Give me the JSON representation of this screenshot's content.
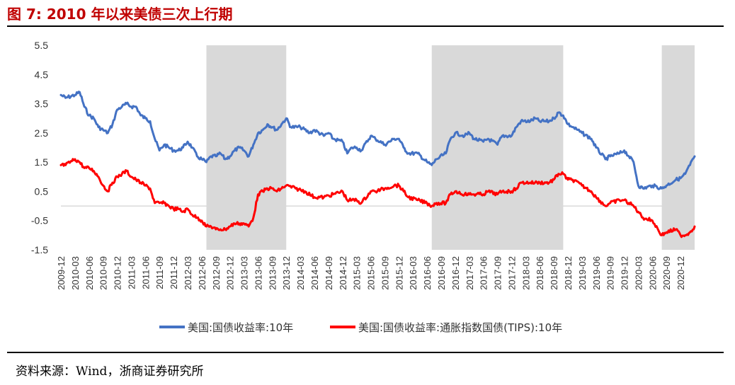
{
  "figure": {
    "title": "图 7: 2010 年以来美债三次上行期",
    "source": "资料来源：Wind，浙商证券研究所"
  },
  "chart_data": {
    "type": "line",
    "title": "图 7: 2010 年以来美债三次上行期",
    "xlabel": "",
    "ylabel": "",
    "ylim": [
      -1.5,
      5.5
    ],
    "yticks": [
      "5.5",
      "4.5",
      "3.5",
      "2.5",
      "1.5",
      "0.5",
      "-0.5",
      "-1.5"
    ],
    "x_range": [
      "2009-12",
      "2021-03"
    ],
    "x_tick_labels": [
      "2009-12",
      "2010-03",
      "2010-06",
      "2010-09",
      "2010-12",
      "2011-03",
      "2011-06",
      "2011-09",
      "2011-12",
      "2012-03",
      "2012-06",
      "2012-09",
      "2012-12",
      "2013-03",
      "2013-06",
      "2013-09",
      "2013-12",
      "2014-03",
      "2014-06",
      "2014-09",
      "2014-12",
      "2015-03",
      "2015-06",
      "2015-09",
      "2015-12",
      "2016-03",
      "2016-06",
      "2016-09",
      "2016-12",
      "2017-03",
      "2017-06",
      "2017-09",
      "2017-12",
      "2018-03",
      "2018-06",
      "2018-09",
      "2018-12",
      "2019-03",
      "2019-06",
      "2019-09",
      "2019-12",
      "2020-03",
      "2020-06",
      "2020-09",
      "2020-12"
    ],
    "grid": false,
    "legend_position": "bottom",
    "shaded_periods": [
      {
        "start": "2012-07",
        "end": "2013-12"
      },
      {
        "start": "2016-07",
        "end": "2018-11"
      },
      {
        "start": "2020-08",
        "end": "2021-03"
      }
    ],
    "series": [
      {
        "name": "美国:国债收益率:10年",
        "color": "#4472c4",
        "points": [
          [
            "2009-12",
            3.8
          ],
          [
            "2010-01",
            3.7
          ],
          [
            "2010-03",
            3.8
          ],
          [
            "2010-04",
            3.9
          ],
          [
            "2010-05",
            3.4
          ],
          [
            "2010-06",
            3.1
          ],
          [
            "2010-07",
            3.0
          ],
          [
            "2010-08",
            2.7
          ],
          [
            "2010-09",
            2.6
          ],
          [
            "2010-10",
            2.5
          ],
          [
            "2010-11",
            2.8
          ],
          [
            "2010-12",
            3.3
          ],
          [
            "2011-01",
            3.4
          ],
          [
            "2011-02",
            3.5
          ],
          [
            "2011-03",
            3.4
          ],
          [
            "2011-04",
            3.4
          ],
          [
            "2011-05",
            3.1
          ],
          [
            "2011-06",
            3.0
          ],
          [
            "2011-07",
            2.9
          ],
          [
            "2011-08",
            2.3
          ],
          [
            "2011-09",
            1.9
          ],
          [
            "2011-10",
            2.1
          ],
          [
            "2011-11",
            2.0
          ],
          [
            "2011-12",
            1.9
          ],
          [
            "2012-01",
            1.9
          ],
          [
            "2012-02",
            2.0
          ],
          [
            "2012-03",
            2.2
          ],
          [
            "2012-04",
            2.0
          ],
          [
            "2012-05",
            1.7
          ],
          [
            "2012-06",
            1.6
          ],
          [
            "2012-07",
            1.5
          ],
          [
            "2012-08",
            1.7
          ],
          [
            "2012-09",
            1.7
          ],
          [
            "2012-10",
            1.8
          ],
          [
            "2012-11",
            1.6
          ],
          [
            "2012-12",
            1.7
          ],
          [
            "2013-01",
            1.9
          ],
          [
            "2013-02",
            2.0
          ],
          [
            "2013-03",
            1.9
          ],
          [
            "2013-04",
            1.7
          ],
          [
            "2013-05",
            2.1
          ],
          [
            "2013-06",
            2.5
          ],
          [
            "2013-07",
            2.6
          ],
          [
            "2013-08",
            2.8
          ],
          [
            "2013-09",
            2.7
          ],
          [
            "2013-10",
            2.6
          ],
          [
            "2013-11",
            2.8
          ],
          [
            "2013-12",
            3.0
          ],
          [
            "2014-01",
            2.7
          ],
          [
            "2014-03",
            2.7
          ],
          [
            "2014-05",
            2.5
          ],
          [
            "2014-06",
            2.6
          ],
          [
            "2014-08",
            2.4
          ],
          [
            "2014-09",
            2.5
          ],
          [
            "2014-10",
            2.3
          ],
          [
            "2014-12",
            2.2
          ],
          [
            "2015-01",
            1.8
          ],
          [
            "2015-02",
            2.0
          ],
          [
            "2015-03",
            2.0
          ],
          [
            "2015-04",
            1.9
          ],
          [
            "2015-06",
            2.4
          ],
          [
            "2015-07",
            2.3
          ],
          [
            "2015-09",
            2.1
          ],
          [
            "2015-11",
            2.3
          ],
          [
            "2015-12",
            2.3
          ],
          [
            "2016-01",
            2.0
          ],
          [
            "2016-02",
            1.8
          ],
          [
            "2016-04",
            1.8
          ],
          [
            "2016-06",
            1.5
          ],
          [
            "2016-07",
            1.4
          ],
          [
            "2016-08",
            1.6
          ],
          [
            "2016-10",
            1.8
          ],
          [
            "2016-11",
            2.3
          ],
          [
            "2016-12",
            2.5
          ],
          [
            "2017-02",
            2.4
          ],
          [
            "2017-03",
            2.5
          ],
          [
            "2017-04",
            2.3
          ],
          [
            "2017-06",
            2.2
          ],
          [
            "2017-07",
            2.3
          ],
          [
            "2017-09",
            2.1
          ],
          [
            "2017-10",
            2.4
          ],
          [
            "2017-12",
            2.4
          ],
          [
            "2018-01",
            2.7
          ],
          [
            "2018-02",
            2.9
          ],
          [
            "2018-04",
            2.9
          ],
          [
            "2018-05",
            3.0
          ],
          [
            "2018-06",
            2.9
          ],
          [
            "2018-08",
            2.9
          ],
          [
            "2018-09",
            3.0
          ],
          [
            "2018-10",
            3.2
          ],
          [
            "2018-11",
            3.1
          ],
          [
            "2018-12",
            2.8
          ],
          [
            "2019-01",
            2.7
          ],
          [
            "2019-03",
            2.5
          ],
          [
            "2019-05",
            2.3
          ],
          [
            "2019-06",
            2.0
          ],
          [
            "2019-08",
            1.6
          ],
          [
            "2019-09",
            1.7
          ],
          [
            "2019-11",
            1.8
          ],
          [
            "2019-12",
            1.9
          ],
          [
            "2020-01",
            1.7
          ],
          [
            "2020-02",
            1.5
          ],
          [
            "2020-03",
            0.7
          ],
          [
            "2020-04",
            0.6
          ],
          [
            "2020-06",
            0.7
          ],
          [
            "2020-08",
            0.6
          ],
          [
            "2020-09",
            0.7
          ],
          [
            "2020-11",
            0.9
          ],
          [
            "2020-12",
            0.95
          ],
          [
            "2021-01",
            1.1
          ],
          [
            "2021-02",
            1.4
          ],
          [
            "2021-03",
            1.7
          ]
        ]
      },
      {
        "name": "美国:国债收益率:通胀指数国债(TIPS):10年",
        "color": "#ff0000",
        "points": [
          [
            "2009-12",
            1.4
          ],
          [
            "2010-01",
            1.4
          ],
          [
            "2010-03",
            1.6
          ],
          [
            "2010-04",
            1.5
          ],
          [
            "2010-05",
            1.3
          ],
          [
            "2010-06",
            1.3
          ],
          [
            "2010-07",
            1.2
          ],
          [
            "2010-08",
            1.0
          ],
          [
            "2010-09",
            0.7
          ],
          [
            "2010-10",
            0.5
          ],
          [
            "2010-11",
            0.8
          ],
          [
            "2010-12",
            1.0
          ],
          [
            "2011-01",
            1.1
          ],
          [
            "2011-02",
            1.2
          ],
          [
            "2011-03",
            1.0
          ],
          [
            "2011-04",
            0.9
          ],
          [
            "2011-05",
            0.8
          ],
          [
            "2011-06",
            0.7
          ],
          [
            "2011-07",
            0.6
          ],
          [
            "2011-08",
            0.1
          ],
          [
            "2011-09",
            0.1
          ],
          [
            "2011-10",
            0.1
          ],
          [
            "2011-11",
            0.0
          ],
          [
            "2011-12",
            -0.1
          ],
          [
            "2012-01",
            -0.1
          ],
          [
            "2012-02",
            -0.2
          ],
          [
            "2012-03",
            -0.1
          ],
          [
            "2012-04",
            -0.3
          ],
          [
            "2012-05",
            -0.4
          ],
          [
            "2012-06",
            -0.5
          ],
          [
            "2012-07",
            -0.7
          ],
          [
            "2012-08",
            -0.7
          ],
          [
            "2012-09",
            -0.8
          ],
          [
            "2012-10",
            -0.8
          ],
          [
            "2012-11",
            -0.8
          ],
          [
            "2012-12",
            -0.7
          ],
          [
            "2013-01",
            -0.6
          ],
          [
            "2013-02",
            -0.6
          ],
          [
            "2013-03",
            -0.6
          ],
          [
            "2013-04",
            -0.7
          ],
          [
            "2013-05",
            -0.4
          ],
          [
            "2013-06",
            0.4
          ],
          [
            "2013-07",
            0.5
          ],
          [
            "2013-08",
            0.6
          ],
          [
            "2013-09",
            0.6
          ],
          [
            "2013-10",
            0.5
          ],
          [
            "2013-11",
            0.6
          ],
          [
            "2013-12",
            0.7
          ],
          [
            "2014-02",
            0.6
          ],
          [
            "2014-04",
            0.5
          ],
          [
            "2014-06",
            0.3
          ],
          [
            "2014-08",
            0.3
          ],
          [
            "2014-10",
            0.4
          ],
          [
            "2014-12",
            0.5
          ],
          [
            "2015-01",
            0.2
          ],
          [
            "2015-02",
            0.2
          ],
          [
            "2015-03",
            0.2
          ],
          [
            "2015-04",
            0.1
          ],
          [
            "2015-06",
            0.5
          ],
          [
            "2015-07",
            0.5
          ],
          [
            "2015-09",
            0.6
          ],
          [
            "2015-11",
            0.7
          ],
          [
            "2015-12",
            0.7
          ],
          [
            "2016-01",
            0.5
          ],
          [
            "2016-02",
            0.3
          ],
          [
            "2016-04",
            0.2
          ],
          [
            "2016-06",
            0.1
          ],
          [
            "2016-07",
            0.0
          ],
          [
            "2016-08",
            0.1
          ],
          [
            "2016-10",
            0.1
          ],
          [
            "2016-11",
            0.4
          ],
          [
            "2016-12",
            0.5
          ],
          [
            "2017-02",
            0.4
          ],
          [
            "2017-03",
            0.4
          ],
          [
            "2017-04",
            0.4
          ],
          [
            "2017-06",
            0.4
          ],
          [
            "2017-07",
            0.5
          ],
          [
            "2017-09",
            0.4
          ],
          [
            "2017-10",
            0.5
          ],
          [
            "2017-12",
            0.5
          ],
          [
            "2018-01",
            0.6
          ],
          [
            "2018-02",
            0.8
          ],
          [
            "2018-04",
            0.8
          ],
          [
            "2018-05",
            0.8
          ],
          [
            "2018-06",
            0.8
          ],
          [
            "2018-08",
            0.8
          ],
          [
            "2018-09",
            0.9
          ],
          [
            "2018-10",
            1.1
          ],
          [
            "2018-11",
            1.1
          ],
          [
            "2018-12",
            0.9
          ],
          [
            "2019-01",
            0.9
          ],
          [
            "2019-03",
            0.7
          ],
          [
            "2019-05",
            0.5
          ],
          [
            "2019-06",
            0.3
          ],
          [
            "2019-08",
            0.0
          ],
          [
            "2019-09",
            0.1
          ],
          [
            "2019-11",
            0.2
          ],
          [
            "2019-12",
            0.2
          ],
          [
            "2020-01",
            0.1
          ],
          [
            "2020-02",
            0.0
          ],
          [
            "2020-03",
            -0.2
          ],
          [
            "2020-04",
            -0.4
          ],
          [
            "2020-06",
            -0.5
          ],
          [
            "2020-08",
            -1.0
          ],
          [
            "2020-09",
            -0.9
          ],
          [
            "2020-11",
            -0.8
          ],
          [
            "2020-12",
            -1.0
          ],
          [
            "2021-01",
            -1.0
          ],
          [
            "2021-02",
            -0.9
          ],
          [
            "2021-03",
            -0.7
          ]
        ]
      }
    ]
  }
}
